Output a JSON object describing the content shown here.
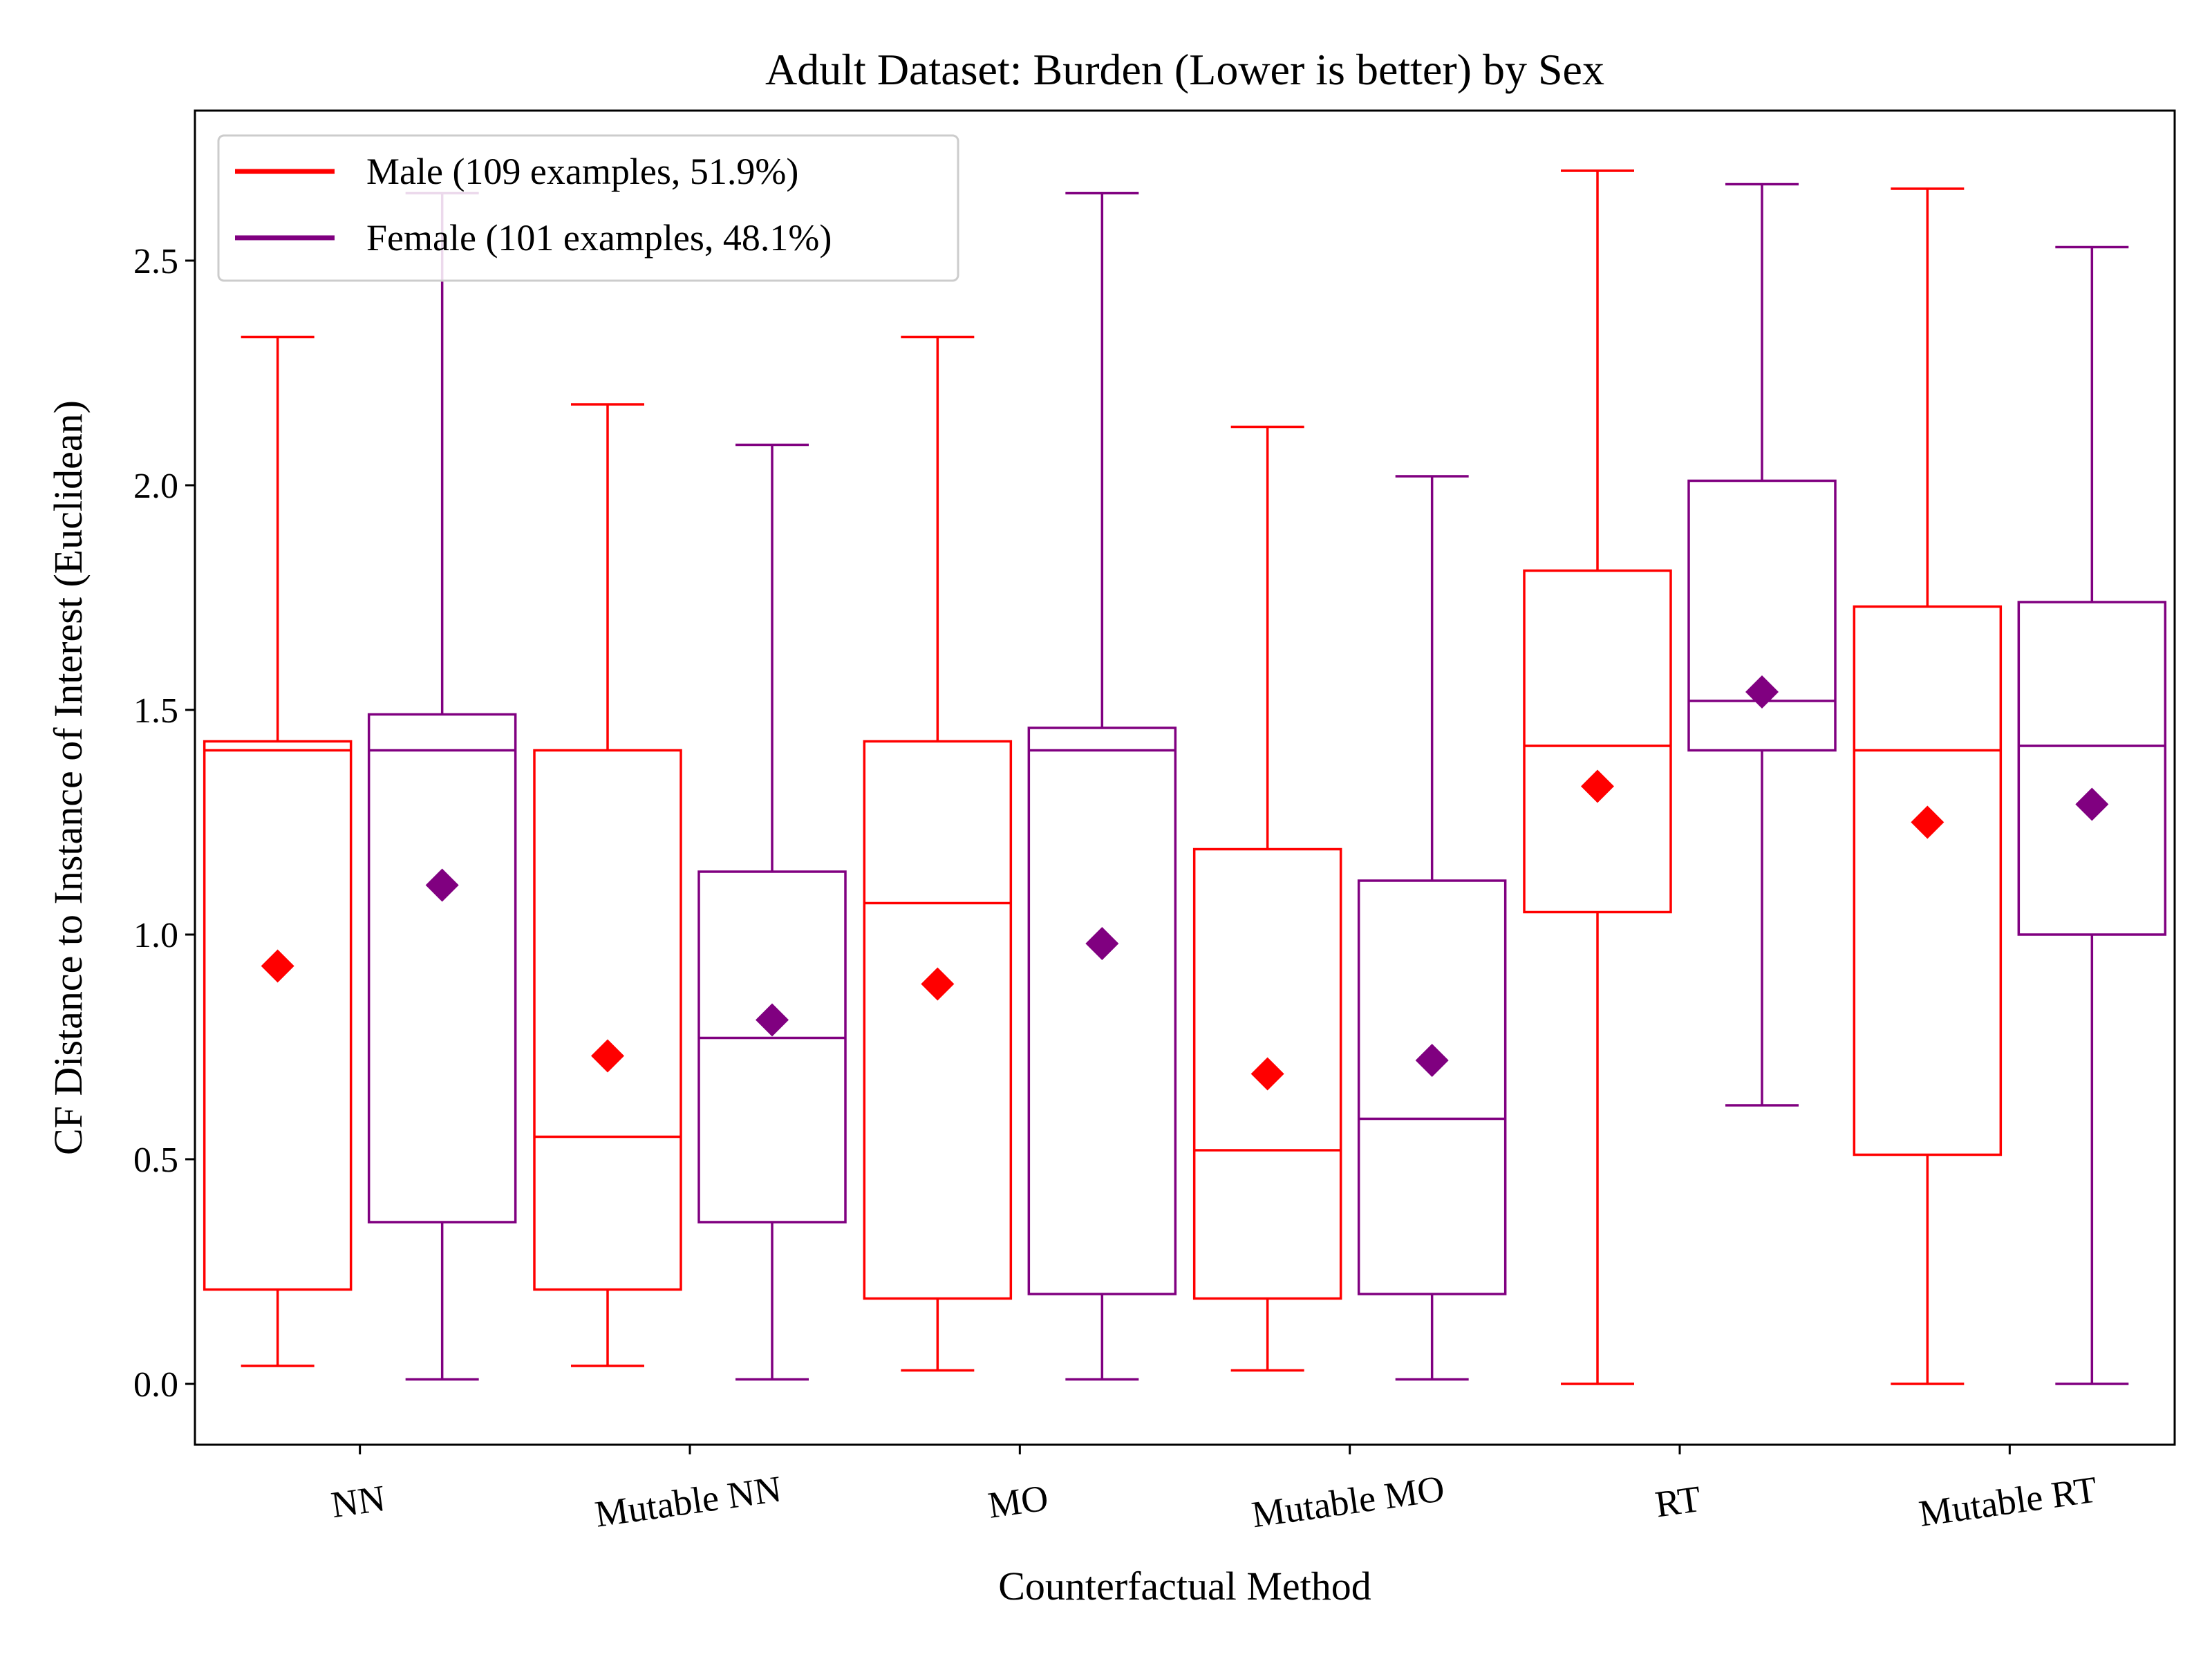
{
  "chart_data": {
    "type": "box",
    "title": "Adult Dataset: Burden (Lower is better) by Sex",
    "xlabel": "Counterfactual Method",
    "ylabel": "CF Distance to Instance of Interest (Euclidean)",
    "ylim": [
      -0.135,
      2.84
    ],
    "yticks": [
      "0.0",
      "0.5",
      "1.0",
      "1.5",
      "2.0",
      "2.5"
    ],
    "grid": false,
    "legend_position": "top-left",
    "categories": [
      "NN",
      "Mutable NN",
      "MO",
      "Mutable MO",
      "RT",
      "Mutable RT"
    ],
    "series": [
      {
        "name": "Male (109 examples, 51.9%)",
        "color": "#ff0000",
        "boxes": [
          {
            "whisker_low": 0.04,
            "q1": 0.21,
            "median": 1.41,
            "q3": 1.43,
            "whisker_high": 2.33,
            "mean": 0.93
          },
          {
            "whisker_low": 0.04,
            "q1": 0.21,
            "median": 0.55,
            "q3": 1.41,
            "whisker_high": 2.18,
            "mean": 0.73
          },
          {
            "whisker_low": 0.03,
            "q1": 0.19,
            "median": 1.07,
            "q3": 1.43,
            "whisker_high": 2.33,
            "mean": 0.89
          },
          {
            "whisker_low": 0.03,
            "q1": 0.19,
            "median": 0.52,
            "q3": 1.19,
            "whisker_high": 2.13,
            "mean": 0.69
          },
          {
            "whisker_low": 0.0,
            "q1": 1.05,
            "median": 1.42,
            "q3": 1.81,
            "whisker_high": 2.7,
            "mean": 1.33
          },
          {
            "whisker_low": 0.0,
            "q1": 0.51,
            "median": 1.41,
            "q3": 1.73,
            "whisker_high": 2.66,
            "mean": 1.25
          }
        ]
      },
      {
        "name": "Female (101 examples, 48.1%)",
        "color": "#800080",
        "boxes": [
          {
            "whisker_low": 0.01,
            "q1": 0.36,
            "median": 1.41,
            "q3": 1.49,
            "whisker_high": 2.65,
            "mean": 1.11
          },
          {
            "whisker_low": 0.01,
            "q1": 0.36,
            "median": 0.77,
            "q3": 1.14,
            "whisker_high": 2.09,
            "mean": 0.81
          },
          {
            "whisker_low": 0.01,
            "q1": 0.2,
            "median": 1.41,
            "q3": 1.46,
            "whisker_high": 2.65,
            "mean": 0.98
          },
          {
            "whisker_low": 0.01,
            "q1": 0.2,
            "median": 0.59,
            "q3": 1.12,
            "whisker_high": 2.02,
            "mean": 0.72
          },
          {
            "whisker_low": 0.62,
            "q1": 1.41,
            "median": 1.52,
            "q3": 2.01,
            "whisker_high": 2.67,
            "mean": 1.54
          },
          {
            "whisker_low": 0.0,
            "q1": 1.0,
            "median": 1.42,
            "q3": 1.74,
            "whisker_high": 2.53,
            "mean": 1.29
          }
        ]
      }
    ]
  }
}
